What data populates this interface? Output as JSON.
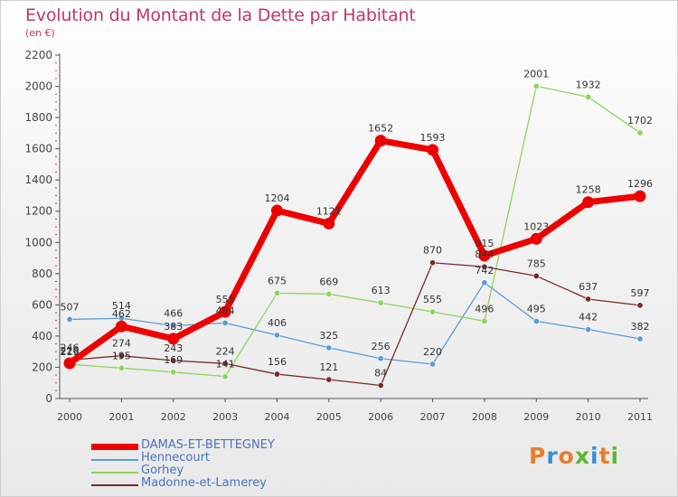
{
  "header": {
    "title": "Evolution du Montant de la Dette par Habitant",
    "subtitle": "(en €)"
  },
  "brand": {
    "text": "Proxiti",
    "colors": [
      "#e87e2a",
      "#3a8fd1",
      "#e87e2a",
      "#5cb82e",
      "#3a8fd1",
      "#e87e2a",
      "#5cb82e"
    ]
  },
  "chart_data": {
    "type": "line",
    "title": "Evolution du Montant de la Dette par Habitant",
    "ylabel": "(en €)",
    "ylim": [
      0,
      2200
    ],
    "yticks": [
      0,
      200,
      400,
      600,
      800,
      1000,
      1200,
      1400,
      1600,
      1800,
      2000,
      2200
    ],
    "x": [
      "2000",
      "2001",
      "2002",
      "2003",
      "2004",
      "2005",
      "2006",
      "2007",
      "2008",
      "2009",
      "2010",
      "2011"
    ],
    "grid": false,
    "legend_position": "bottom-left",
    "series": [
      {
        "name": "Hennecourt",
        "color": "#5b9bd5",
        "values": [
          507,
          514,
          466,
          484,
          406,
          325,
          256,
          220,
          742,
          495,
          442,
          382
        ],
        "labels": [
          "507",
          "514",
          "466",
          "484",
          "406",
          "325",
          "256",
          "220",
          "742",
          "495",
          "442",
          "382"
        ]
      },
      {
        "name": "Gorhey",
        "color": "#8fd45a",
        "values": [
          219,
          195,
          169,
          141,
          675,
          669,
          613,
          555,
          496,
          2001,
          1932,
          1702
        ],
        "labels": [
          "219",
          "195",
          "169",
          "141",
          "675",
          "669",
          "613",
          "555",
          "496",
          "2001",
          "1932",
          "1702"
        ]
      },
      {
        "name": "Madonne-et-Lamerey",
        "color": "#7a2a2a",
        "values": [
          246,
          274,
          243,
          224,
          156,
          121,
          84,
          870,
          844,
          785,
          637,
          597
        ],
        "labels": [
          "246",
          "274",
          "243",
          "224",
          "156",
          "121",
          "84",
          "870",
          "844",
          "785",
          "637",
          "597"
        ]
      },
      {
        "name": "DAMAS-ET-BETTEGNEY",
        "color": "#ee0000",
        "values": [
          226,
          462,
          383,
          555,
          1204,
          1121,
          1652,
          1593,
          915,
          1023,
          1258,
          1296
        ],
        "labels": [
          "226",
          "462",
          "383",
          "555",
          "1204",
          "1121",
          "1652",
          "1593",
          "915",
          "1023",
          "1258",
          "1296"
        ]
      }
    ],
    "legend_order": [
      "DAMAS-ET-BETTEGNEY",
      "Hennecourt",
      "Gorhey",
      "Madonne-et-Lamerey"
    ]
  },
  "legend": [
    {
      "name": "DAMAS-ET-BETTEGNEY",
      "color": "#ee0000",
      "text_color": "#4a72c4"
    },
    {
      "name": "Hennecourt",
      "color": "#5b9bd5",
      "text_color": "#4a72c4"
    },
    {
      "name": "Gorhey",
      "color": "#8fd45a",
      "text_color": "#4a72c4"
    },
    {
      "name": "Madonne-et-Lamerey",
      "color": "#7a2a2a",
      "text_color": "#4a72c4"
    }
  ]
}
